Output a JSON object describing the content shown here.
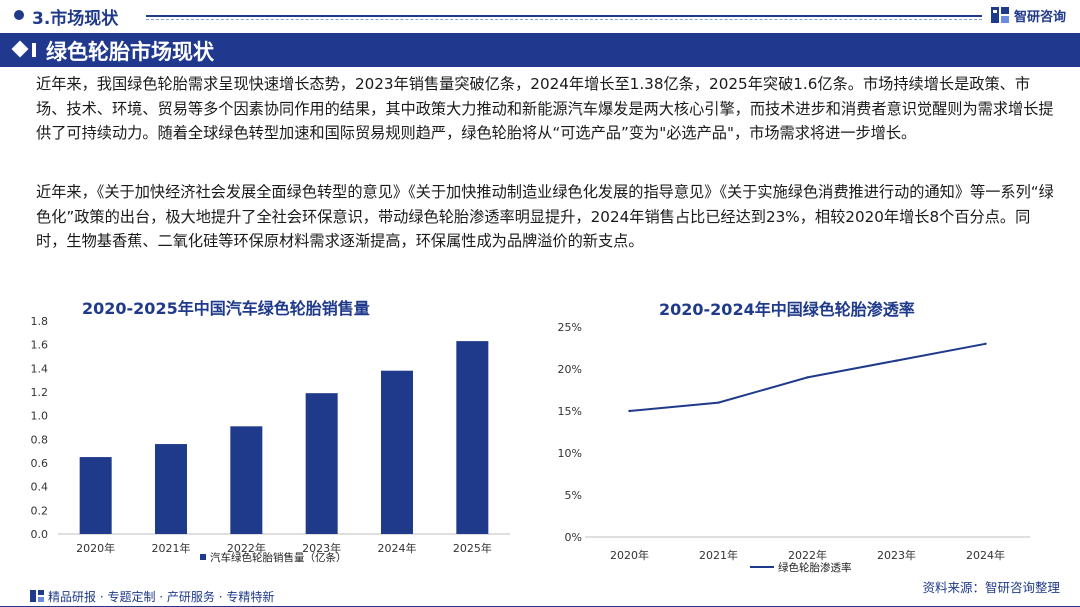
{
  "header": {
    "section_title": "3.市场现状",
    "brand_name": "智研咨询"
  },
  "banner": {
    "title": "绿色轮胎市场现状"
  },
  "paragraphs": {
    "p1": "近年来，我国绿色轮胎需求呈现快速增长态势，2023年销售量突破亿条，2024年增长至1.38亿条，2025年突破1.6亿条。市场持续增长是政策、市场、技术、环境、贸易等多个因素协同作用的结果，其中政策大力推动和新能源汽车爆发是两大核心引擎，而技术进步和消费者意识觉醒则为需求增长提供了可持续动力。随着全球绿色转型加速和国际贸易规则趋严，绿色轮胎将从“可选产品”变为\"必选产品\"，市场需求将进一步增长。",
    "p2": "近年来，《关于加快经济社会发展全面绿色转型的意见》《关于加快推动制造业绿色化发展的指导意见》《关于实施绿色消费推进行动的通知》等一系列“绿色化”政策的出台，极大地提升了全社会环保意识，带动绿色轮胎渗透率明显提升，2024年销售占比已经达到23%，相较2020年增长8个百分点。同时，生物基香蕉、二氧化硅等环保原材料需求逐渐提高，环保属性成为品牌溢价的新支点。"
  },
  "chart_data": [
    {
      "type": "bar",
      "title": "2020-2025年中国汽车绿色轮胎销售量",
      "categories": [
        "2020年",
        "2021年",
        "2022年",
        "2023年",
        "2024年",
        "2025年"
      ],
      "series": [
        {
          "name": "汽车绿色轮胎销售量（亿条）",
          "values": [
            0.65,
            0.76,
            0.91,
            1.19,
            1.38,
            1.63
          ]
        }
      ],
      "ylim": [
        0,
        1.8
      ],
      "yticks": [
        "0.0",
        "0.2",
        "0.4",
        "0.6",
        "0.8",
        "1.0",
        "1.2",
        "1.4",
        "1.6",
        "1.8"
      ],
      "bar_color": "#1f3a8a",
      "legend_position": "bottom",
      "grid": false
    },
    {
      "type": "line",
      "title": "2020-2024年中国绿色轮胎渗透率",
      "categories": [
        "2020年",
        "2021年",
        "2022年",
        "2023年",
        "2024年"
      ],
      "series": [
        {
          "name": "绿色轮胎渗透率",
          "values": [
            15,
            16,
            19,
            21,
            23
          ]
        }
      ],
      "ylim": [
        0,
        25
      ],
      "yticks": [
        "0%",
        "5%",
        "10%",
        "15%",
        "20%",
        "25%"
      ],
      "line_color": "#1f3a8a",
      "legend_position": "bottom",
      "grid": false
    }
  ],
  "footer": {
    "left_text": "精品研报 · 专题定制 · 产研服务 · 专精特新",
    "source": "资料来源：智研咨询整理"
  },
  "colors": {
    "brand_blue": "#1f3a8a",
    "banner_blue": "#20398f"
  }
}
